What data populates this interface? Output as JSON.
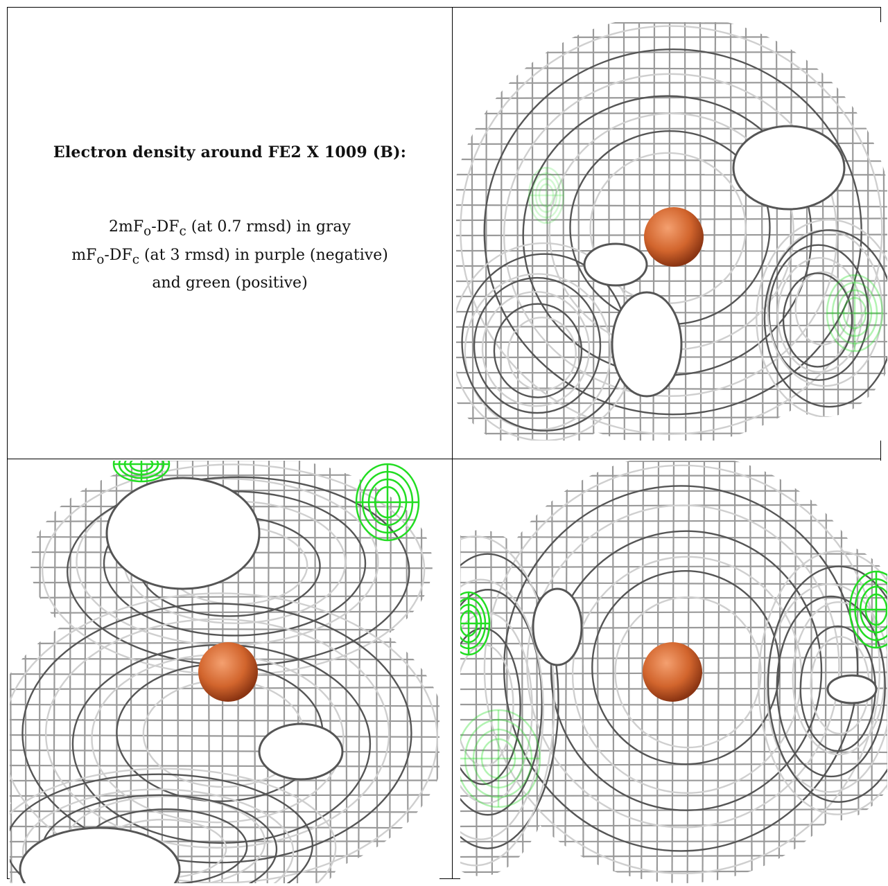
{
  "caption": {
    "title": "Electron density around FE2 X 1009 (B):",
    "line1_a": "2mF",
    "line1_sub1": "o",
    "line1_b": "-DF",
    "line1_sub2": "c",
    "line1_c": " (at 0.7 rmsd) in gray",
    "line2_a": "mF",
    "line2_sub1": "o",
    "line2_b": "-DF",
    "line2_sub2": "c",
    "line2_c": " (at 3 rmsd) in purple (negative)",
    "line3": "and green (positive)"
  },
  "colors": {
    "mesh_gray": "#9a9a9a",
    "mesh_dark": "#555555",
    "mesh_light": "#cfcfcf",
    "positive_green": "#22dd22",
    "atom_fe": "#d2652d"
  },
  "panels": [
    {
      "id": "top-right",
      "atom": "iron-atom"
    },
    {
      "id": "bottom-left",
      "atom": "iron-atom"
    },
    {
      "id": "bottom-right",
      "atom": "iron-atom"
    }
  ]
}
